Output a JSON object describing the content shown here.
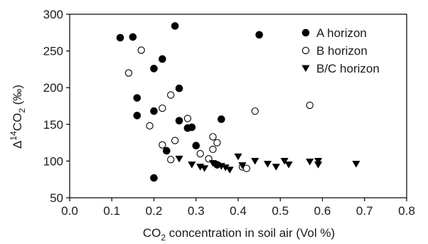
{
  "chart_data": {
    "type": "scatter",
    "xlim": [
      0.0,
      0.8
    ],
    "ylim": [
      50,
      300
    ],
    "x_ticks": [
      "0.0",
      "0.1",
      "0.2",
      "0.3",
      "0.4",
      "0.5",
      "0.6",
      "0.7",
      "0.8"
    ],
    "y_ticks": [
      "50",
      "100",
      "150",
      "200",
      "250",
      "300"
    ],
    "xlabel": {
      "prefix": "CO",
      "sub": "2",
      "suffix": " concentration in soil air (Vol %)"
    },
    "ylabel": {
      "prefix": "Δ",
      "sup": "14",
      "mid": "CO",
      "sub": "2",
      "suffix": " (‰)"
    },
    "grid": false,
    "legend_position": "top-right",
    "series": [
      {
        "name": "A horizon",
        "marker": "filled-circle",
        "color": "#000000",
        "points": [
          [
            0.12,
            268
          ],
          [
            0.15,
            269
          ],
          [
            0.25,
            284
          ],
          [
            0.45,
            272
          ],
          [
            0.22,
            239
          ],
          [
            0.2,
            226
          ],
          [
            0.26,
            199
          ],
          [
            0.16,
            186
          ],
          [
            0.16,
            162
          ],
          [
            0.2,
            168
          ],
          [
            0.26,
            155
          ],
          [
            0.28,
            145
          ],
          [
            0.29,
            146
          ],
          [
            0.36,
            157
          ],
          [
            0.3,
            121
          ],
          [
            0.23,
            114
          ],
          [
            0.35,
            95
          ],
          [
            0.2,
            77
          ]
        ]
      },
      {
        "name": "B horizon",
        "marker": "open-circle",
        "color": "#000000",
        "points": [
          [
            0.17,
            251
          ],
          [
            0.14,
            220
          ],
          [
            0.24,
            190
          ],
          [
            0.22,
            172
          ],
          [
            0.19,
            148
          ],
          [
            0.28,
            158
          ],
          [
            0.25,
            128
          ],
          [
            0.22,
            122
          ],
          [
            0.31,
            110
          ],
          [
            0.24,
            102
          ],
          [
            0.34,
            133
          ],
          [
            0.35,
            125
          ],
          [
            0.34,
            116
          ],
          [
            0.33,
            103
          ],
          [
            0.44,
            168
          ],
          [
            0.57,
            176
          ],
          [
            0.41,
            92
          ],
          [
            0.42,
            90
          ]
        ]
      },
      {
        "name": "B/C horizon",
        "marker": "filled-triangle-down",
        "color": "#000000",
        "points": [
          [
            0.26,
            103
          ],
          [
            0.29,
            95
          ],
          [
            0.31,
            92
          ],
          [
            0.32,
            90
          ],
          [
            0.34,
            97
          ],
          [
            0.35,
            94
          ],
          [
            0.36,
            93
          ],
          [
            0.37,
            91
          ],
          [
            0.38,
            88
          ],
          [
            0.4,
            106
          ],
          [
            0.41,
            94
          ],
          [
            0.44,
            100
          ],
          [
            0.47,
            96
          ],
          [
            0.49,
            92
          ],
          [
            0.51,
            100
          ],
          [
            0.52,
            95
          ],
          [
            0.57,
            99
          ],
          [
            0.59,
            100
          ],
          [
            0.59,
            95
          ],
          [
            0.68,
            96
          ]
        ]
      }
    ]
  }
}
